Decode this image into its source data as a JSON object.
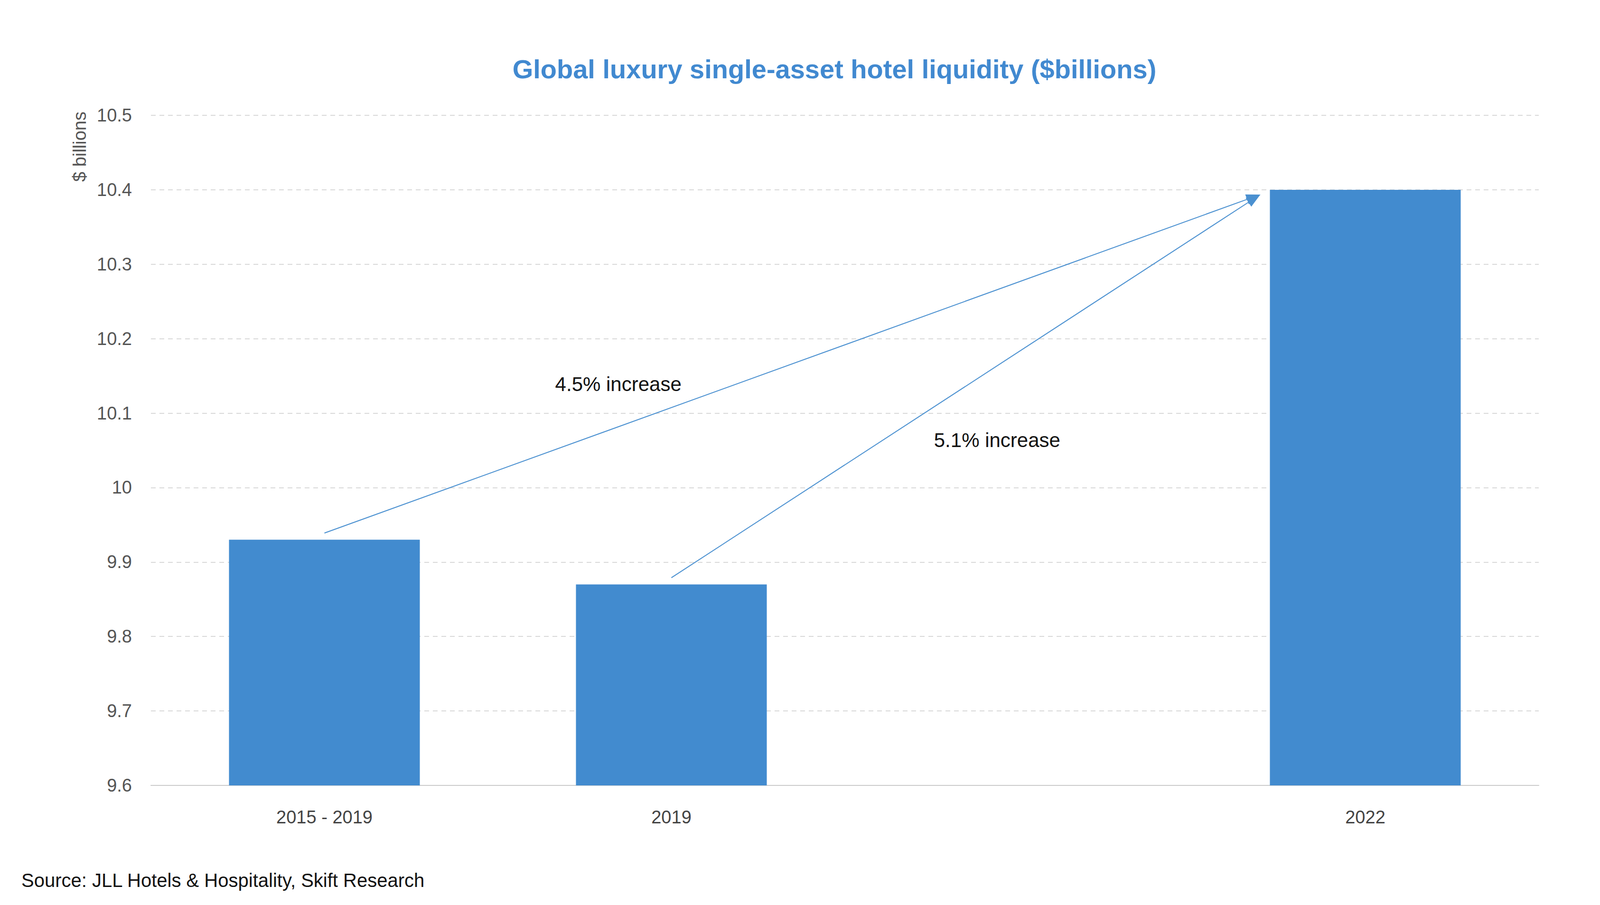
{
  "chart_data": {
    "type": "bar",
    "title": "Global luxury single-asset hotel liquidity ($billions)",
    "y_label": "$ billions",
    "source": "Source: JLL Hotels & Hospitality, Skift Research",
    "categories": [
      "2015 - 2019",
      "2019",
      null,
      "2022"
    ],
    "values": [
      9.93,
      9.87,
      null,
      10.4
    ],
    "color": "#428bcf",
    "ylim": [
      9.6,
      10.5
    ],
    "yticks": [
      9.6,
      9.7,
      9.8,
      9.9,
      10,
      10.1,
      10.2,
      10.3,
      10.4,
      10.5
    ],
    "grid": true,
    "annotations": [
      {
        "text": "4.5% increase",
        "from": "2015 - 2019",
        "to": "2022"
      },
      {
        "text": "5.1% increase",
        "from": "2019",
        "to": "2022"
      }
    ]
  }
}
